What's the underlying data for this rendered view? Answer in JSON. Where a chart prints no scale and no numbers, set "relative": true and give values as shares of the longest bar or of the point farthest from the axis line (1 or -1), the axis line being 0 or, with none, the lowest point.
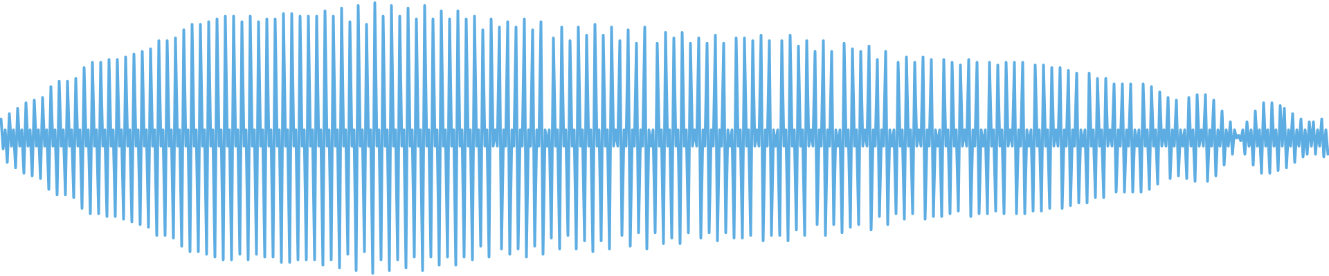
{
  "chart_data": {
    "type": "line",
    "relative": true,
    "color": "#5dade2",
    "categories": [
      null,
      null,
      null,
      null,
      null,
      null,
      null,
      null,
      null,
      null,
      null,
      null,
      null,
      null,
      null,
      null,
      null,
      null,
      null,
      null,
      null,
      null,
      null,
      null,
      null,
      null,
      null,
      null,
      null,
      null,
      null,
      null,
      null,
      null,
      null,
      null,
      null,
      null,
      null,
      null,
      null,
      null,
      null,
      null,
      null,
      null,
      null,
      null,
      null,
      null,
      null,
      null,
      null,
      null,
      null,
      null,
      null,
      null,
      null,
      null,
      null,
      null,
      null,
      null,
      null,
      null,
      null,
      null,
      null,
      null,
      null,
      null,
      null,
      null,
      null,
      null,
      null,
      null,
      null,
      null,
      null,
      null,
      null,
      null,
      null,
      null,
      null,
      null,
      null,
      null,
      null,
      null,
      null,
      null,
      null,
      null,
      null,
      null,
      null,
      null,
      null,
      null,
      null,
      null,
      null,
      null,
      null,
      null,
      null,
      null,
      null,
      null,
      null,
      null,
      null,
      null,
      null,
      null,
      null,
      null,
      null,
      null,
      null,
      null,
      null,
      null,
      null,
      null,
      null,
      null,
      null,
      null,
      null,
      null,
      null,
      null,
      null,
      null,
      null,
      null,
      null,
      null,
      null,
      null,
      null,
      null,
      null,
      null,
      null,
      null,
      null,
      null,
      null,
      null,
      null,
      null,
      null,
      null,
      null,
      null,
      null,
      null,
      null,
      null,
      null,
      null,
      null,
      null,
      null,
      null,
      null,
      null,
      null,
      null,
      null,
      null,
      null,
      null,
      null,
      null,
      null,
      null,
      null,
      null,
      null,
      null,
      null,
      null,
      null,
      null,
      null,
      null,
      null,
      null,
      null,
      null,
      null,
      null,
      null,
      null,
      null,
      null,
      null,
      null,
      null,
      null,
      null,
      null,
      null,
      null,
      null,
      null,
      null,
      null,
      null,
      null,
      null,
      null,
      null,
      null,
      null,
      null,
      null,
      null,
      null,
      null,
      null,
      null,
      null,
      null,
      null,
      null,
      null,
      null,
      null,
      null,
      null,
      null,
      null,
      null,
      null,
      null,
      null,
      null,
      null,
      null,
      null,
      null,
      null,
      null,
      null,
      null,
      null,
      null,
      null,
      null,
      null,
      null,
      null,
      null,
      null,
      null,
      null,
      null,
      null,
      null,
      null,
      null,
      null,
      null,
      null,
      null,
      null,
      null,
      null,
      null,
      null,
      null,
      null,
      null,
      null,
      null,
      null,
      null,
      null,
      null,
      null,
      null,
      null,
      null,
      null,
      null,
      null,
      null,
      null,
      null,
      null,
      null,
      null,
      null,
      null,
      null,
      null,
      null,
      null,
      null,
      null,
      null,
      null,
      null,
      null,
      null,
      null,
      null,
      null,
      null,
      null,
      null,
      null,
      null,
      null,
      null,
      null,
      null,
      null,
      null,
      null,
      null,
      null,
      null,
      null,
      null,
      null,
      null,
      null,
      null,
      null,
      null,
      null,
      null,
      null,
      null,
      null,
      null,
      null,
      null,
      null,
      null,
      null,
      null,
      null,
      null,
      null,
      null,
      null,
      null,
      null,
      null,
      null,
      null,
      null,
      null,
      null,
      null,
      null,
      null,
      null,
      null,
      null,
      null,
      null,
      null,
      null,
      null,
      null,
      null,
      null,
      null,
      null,
      null,
      null,
      null,
      null,
      null,
      null,
      null,
      null,
      null,
      null,
      null,
      null,
      null,
      null,
      null,
      null,
      null,
      null,
      null,
      null,
      null,
      null,
      null,
      null,
      null,
      null,
      null,
      null,
      null,
      null,
      null,
      null,
      null,
      null,
      null,
      null,
      null,
      null,
      null,
      null,
      null,
      null,
      null,
      null,
      null,
      null,
      null,
      null,
      null,
      null,
      null,
      null,
      null,
      null,
      null,
      null,
      null,
      null,
      null,
      null,
      null,
      null,
      null,
      null,
      null,
      null,
      null,
      null,
      null,
      null,
      null,
      null,
      null,
      null,
      null,
      null,
      null,
      null,
      null,
      null,
      null,
      null,
      null,
      null,
      null,
      null,
      null,
      null,
      null,
      null,
      null,
      null,
      null,
      null,
      null,
      null,
      null,
      null,
      null,
      null,
      null,
      null,
      null,
      null,
      null,
      null,
      null,
      null,
      null,
      null,
      null,
      null,
      null,
      null,
      null,
      null,
      null,
      null,
      null,
      null,
      null,
      null,
      null,
      null,
      null,
      null,
      null,
      null,
      null,
      null,
      null,
      null,
      null,
      null,
      null,
      null,
      null,
      null,
      null,
      null,
      null,
      null,
      null,
      null,
      null,
      null,
      null,
      null,
      null,
      null,
      null,
      null,
      null,
      null,
      null,
      null,
      null,
      null,
      null,
      null,
      null,
      null,
      null,
      null,
      null,
      null,
      null,
      null,
      null,
      null,
      null,
      null,
      null,
      null,
      null,
      null,
      null,
      null,
      null,
      null,
      null,
      null,
      null,
      null,
      null,
      null,
      null,
      null,
      null,
      null,
      null,
      null,
      null,
      null,
      null,
      null,
      null,
      null,
      null,
      null,
      null,
      null,
      null,
      null,
      null,
      null,
      null,
      null,
      null,
      null,
      null,
      null,
      null,
      null,
      null,
      null,
      null,
      null,
      null,
      null,
      null,
      null,
      null,
      null,
      null,
      null,
      null,
      null,
      null,
      null,
      null,
      null,
      null,
      null,
      null,
      null,
      null,
      null,
      null,
      null,
      null,
      null,
      null,
      null,
      null,
      null,
      null,
      null,
      null,
      null,
      null,
      null,
      null,
      null,
      null,
      null,
      null,
      null,
      null,
      null,
      null
    ],
    "values": [
      0.57,
      0.46,
      0.53,
      0.41,
      0.59,
      0.47,
      0.53,
      0.39,
      0.61,
      0.47,
      0.53,
      0.37,
      0.63,
      0.47,
      0.53,
      0.36,
      0.64,
      0.47,
      0.53,
      0.35,
      0.65,
      0.47,
      0.53,
      0.31,
      0.69,
      0.47,
      0.53,
      0.29,
      0.71,
      0.47,
      0.53,
      0.29,
      0.71,
      0.47,
      0.53,
      0.28,
      0.72,
      0.47,
      0.53,
      0.24,
      0.76,
      0.47,
      0.53,
      0.22,
      0.78,
      0.47,
      0.53,
      0.22,
      0.78,
      0.47,
      0.53,
      0.21,
      0.79,
      0.47,
      0.53,
      0.21,
      0.79,
      0.47,
      0.53,
      0.2,
      0.8,
      0.47,
      0.53,
      0.19,
      0.81,
      0.47,
      0.53,
      0.18,
      0.82,
      0.47,
      0.53,
      0.17,
      0.83,
      0.47,
      0.53,
      0.14,
      0.86,
      0.47,
      0.53,
      0.14,
      0.86,
      0.47,
      0.53,
      0.13,
      0.87,
      0.47,
      0.53,
      0.1,
      0.9,
      0.47,
      0.53,
      0.08,
      0.92,
      0.47,
      0.53,
      0.08,
      0.92,
      0.47,
      0.53,
      0.07,
      0.93,
      0.47,
      0.53,
      0.06,
      0.94,
      0.47,
      0.53,
      0.05,
      0.95,
      0.47,
      0.53,
      0.05,
      0.95,
      0.47,
      0.53,
      0.07,
      0.93,
      0.47,
      0.53,
      0.05,
      0.95,
      0.47,
      0.53,
      0.07,
      0.93,
      0.47,
      0.53,
      0.06,
      0.94,
      0.47,
      0.53,
      0.06,
      0.94,
      0.47,
      0.53,
      0.04,
      0.96,
      0.47,
      0.53,
      0.04,
      0.96,
      0.47,
      0.53,
      0.05,
      0.95,
      0.47,
      0.53,
      0.05,
      0.95,
      0.47,
      0.53,
      0.05,
      0.95,
      0.47,
      0.53,
      0.03,
      0.97,
      0.47,
      0.53,
      0.05,
      0.95,
      0.47,
      0.53,
      0.02,
      0.98,
      0.47,
      0.53,
      0.07,
      0.93,
      0.47,
      0.53,
      0.01,
      0.99,
      0.47,
      0.53,
      0.08,
      0.92,
      0.47,
      0.53,
      0,
      1,
      0.47,
      0.53,
      0.05,
      0.95,
      0.47,
      0.53,
      0.01,
      0.99,
      0.47,
      0.53,
      0.05,
      0.95,
      0.47,
      0.53,
      0.02,
      0.98,
      0.47,
      0.53,
      0.06,
      0.94,
      0.47,
      0.53,
      0.01,
      0.99,
      0.47,
      0.53,
      0.06,
      0.94,
      0.47,
      0.53,
      0.03,
      0.97,
      0.47,
      0.53,
      0.06,
      0.94,
      0.47,
      0.53,
      0.03,
      0.97,
      0.47,
      0.53,
      0.06,
      0.94,
      0.47,
      0.53,
      0.05,
      0.95,
      0.47,
      0.53,
      0.1,
      0.9,
      0.47,
      0.53,
      0.06,
      0.94,
      0.47,
      0.53,
      0.47,
      0.91,
      0.09,
      0.53,
      0.47,
      0.93,
      0.07,
      0.53,
      0.47,
      0.91,
      0.09,
      0.53,
      0.47,
      0.94,
      0.06,
      0.53,
      0.47,
      0.9,
      0.1,
      0.53,
      0.47,
      0.93,
      0.07,
      0.53,
      0.47,
      0.53,
      0.13,
      0.87,
      0.47,
      0.53,
      0.09,
      0.91,
      0.47,
      0.53,
      0.14,
      0.86,
      0.47,
      0.53,
      0.09,
      0.91,
      0.47,
      0.53,
      0.12,
      0.88,
      0.47,
      0.53,
      0.08,
      0.92,
      0.47,
      0.53,
      0.12,
      0.88,
      0.47,
      0.53,
      0.09,
      0.91,
      0.47,
      0.53,
      0.47,
      0.86,
      0.14,
      0.53,
      0.47,
      0.9,
      0.1,
      0.53,
      0.47,
      0.85,
      0.15,
      0.53,
      0.47,
      0.91,
      0.09,
      0.53,
      0.47,
      0.53,
      0.15,
      0.85,
      0.47,
      0.53,
      0.11,
      0.89,
      0.47,
      0.53,
      0.13,
      0.87,
      0.47,
      0.53,
      0.11,
      0.89,
      0.47,
      0.53,
      0.15,
      0.85,
      0.47,
      0.53,
      0.47,
      0.87,
      0.13,
      0.53,
      0.47,
      0.85,
      0.15,
      0.53,
      0.47,
      0.88,
      0.12,
      0.53,
      0.47,
      0.85,
      0.15,
      0.53,
      0.47,
      0.53,
      0.13,
      0.87,
      0.47,
      0.53,
      0.13,
      0.87,
      0.47,
      0.53,
      0.14,
      0.86,
      0.47,
      0.53,
      0.47,
      0.88,
      0.12,
      0.53,
      0.47,
      0.86,
      0.14,
      0.53,
      0.47,
      0.53,
      0.14,
      0.86,
      0.47,
      0.53,
      0.12,
      0.88,
      0.47,
      0.53,
      0.16,
      0.84,
      0.47,
      0.53,
      0.14,
      0.86,
      0.47,
      0.53,
      0.47,
      0.82,
      0.18,
      0.53,
      0.47,
      0.86,
      0.14,
      0.53,
      0.47,
      0.82,
      0.18,
      0.53,
      0.47,
      0.53,
      0.15,
      0.85,
      0.47,
      0.53,
      0.17,
      0.83,
      0.47,
      0.53,
      0.18,
      0.82,
      0.47,
      0.53,
      0.47,
      0.84,
      0.16,
      0.53,
      0.47,
      0.79,
      0.21,
      0.53,
      0.47,
      0.82,
      0.18,
      0.53,
      0.47,
      0.53,
      0.22,
      0.78,
      0.47,
      0.53,
      0.2,
      0.8,
      0.47,
      0.53,
      0.22,
      0.78,
      0.47,
      0.53,
      0.47,
      0.8,
      0.2,
      0.53,
      0.47,
      0.79,
      0.21,
      0.53,
      0.47,
      0.53,
      0.21,
      0.79,
      0.47,
      0.53,
      0.22,
      0.78,
      0.47,
      0.53,
      0.23,
      0.77,
      0.47,
      0.53,
      0.47,
      0.79,
      0.21,
      0.53,
      0.47,
      0.78,
      0.22,
      0.53,
      0.47,
      0.53,
      0.22,
      0.78,
      0.47,
      0.53,
      0.23,
      0.77,
      0.47,
      0.53,
      0.22,
      0.78,
      0.47,
      0.53,
      0.47,
      0.78,
      0.22,
      0.53,
      0.47,
      0.78,
      0.22,
      0.53,
      0.47,
      0.53,
      0.23,
      0.77,
      0.47,
      0.53,
      0.23,
      0.77,
      0.47,
      0.53,
      0.24,
      0.76,
      0.47,
      0.53,
      0.47,
      0.76,
      0.24,
      0.53,
      0.47,
      0.75,
      0.25,
      0.53,
      0.47,
      0.74,
      0.26,
      0.53,
      0.47,
      0.53,
      0.26,
      0.74,
      0.47,
      0.53,
      0.28,
      0.72,
      0.47,
      0.53,
      0.28,
      0.72,
      0.47,
      0.53,
      0.47,
      0.7,
      0.3,
      0.53,
      0.47,
      0.7,
      0.3,
      0.53,
      0.47,
      0.7,
      0.3,
      0.53,
      0.47,
      0.53,
      0.3,
      0.7,
      0.47,
      0.53,
      0.31,
      0.69,
      0.47,
      0.53,
      0.33,
      0.67,
      0.47,
      0.53,
      0.47,
      0.65,
      0.35,
      0.53,
      0.47,
      0.64,
      0.36,
      0.53,
      0.47,
      0.53,
      0.35,
      0.65,
      0.47,
      0.53,
      0.34,
      0.66,
      0.47,
      0.53,
      0.47,
      0.66,
      0.34,
      0.53,
      0.47,
      0.64,
      0.36,
      0.53,
      0.47,
      0.6,
      0.4,
      0.53,
      0.47,
      0.56,
      0.44,
      0.53,
      0.5,
      0.51,
      0.49,
      0.53,
      0.44,
      0.56,
      0.47,
      0.53,
      0.4,
      0.6,
      0.47,
      0.53,
      0.37,
      0.63,
      0.47,
      0.53,
      0.37,
      0.63,
      0.47,
      0.53,
      0.38,
      0.62,
      0.47,
      0.61,
      0.39,
      0.53,
      0.47,
      0.59,
      0.41,
      0.53,
      0.47,
      0.57,
      0.43,
      0.53,
      0.44,
      0.56,
      0.47,
      0.56,
      0.44,
      0.53,
      0.47,
      0.57,
      0.43,
      0.53,
      0.44
    ]
  }
}
